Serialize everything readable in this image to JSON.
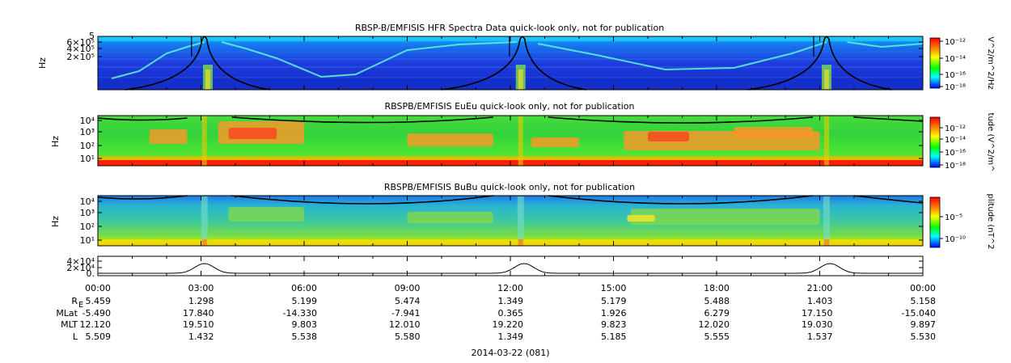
{
  "chart_data": {
    "type": "heatmap",
    "date_label": "2014-03-22 (081)",
    "time_ticks": [
      "00:00",
      "03:00",
      "06:00",
      "09:00",
      "12:00",
      "15:00",
      "18:00",
      "21:00",
      "00:00"
    ],
    "panels": [
      {
        "title": "RBSP-B/EMFISIS  HFR Spectra Data quick-look only, not for publication",
        "ylabel": "Hz",
        "yticks": [
          "6×10⁵",
          "4×10⁵",
          "2×10⁵"
        ],
        "ytop_label": "5",
        "colorbar_label": "V^2/m^2/Hz",
        "colorbar_ticks": [
          "10⁻¹²",
          "10⁻¹⁴",
          "10⁻¹⁶",
          "10⁻¹⁸"
        ],
        "background_color": "#1e3cdc"
      },
      {
        "title": "RBSPB/EMFISIS  EuEu quick-look only, not for publication",
        "ylabel": "Hz",
        "yticks": [
          "10⁴",
          "10³",
          "10²",
          "10¹"
        ],
        "colorbar_label": "tude (V^2/m^",
        "colorbar_ticks": [
          "10⁻¹²",
          "10⁻¹⁴",
          "10⁻¹⁶",
          "10⁻¹⁸"
        ],
        "background_color": "#28d23c"
      },
      {
        "title": "RBSPB/EMFISIS  BuBu quick-look only, not for publication",
        "ylabel": "Hz",
        "yticks": [
          "10⁴",
          "10³",
          "10²",
          "10¹"
        ],
        "colorbar_label": "plitude (nT^2",
        "colorbar_ticks": [
          "10⁻⁵",
          "10⁻¹⁰"
        ],
        "background_color": "#3cc8aa"
      },
      {
        "type": "line",
        "yticks": [
          "4×10⁴",
          "2×10⁴",
          "0."
        ],
        "peaks_hours": [
          3.1,
          12.4,
          21.3
        ]
      }
    ],
    "ephemeris": {
      "rows": [
        {
          "label": "R",
          "label_sub": "E",
          "values": [
            "5.459",
            "1.298",
            "5.199",
            "5.474",
            "1.349",
            "5.179",
            "5.488",
            "1.403",
            "5.158"
          ]
        },
        {
          "label": "MLat",
          "values": [
            "-5.490",
            "17.840",
            "-14.330",
            "-7.941",
            "0.365",
            "1.926",
            "6.279",
            "17.150",
            "-15.040"
          ]
        },
        {
          "label": "MLT",
          "values": [
            "12.120",
            "19.510",
            "9.803",
            "12.010",
            "19.220",
            "9.823",
            "12.020",
            "19.030",
            "9.897"
          ]
        },
        {
          "label": "L",
          "values": [
            "5.509",
            "1.432",
            "5.538",
            "5.580",
            "1.349",
            "5.185",
            "5.555",
            "1.537",
            "5.530"
          ]
        }
      ]
    }
  }
}
